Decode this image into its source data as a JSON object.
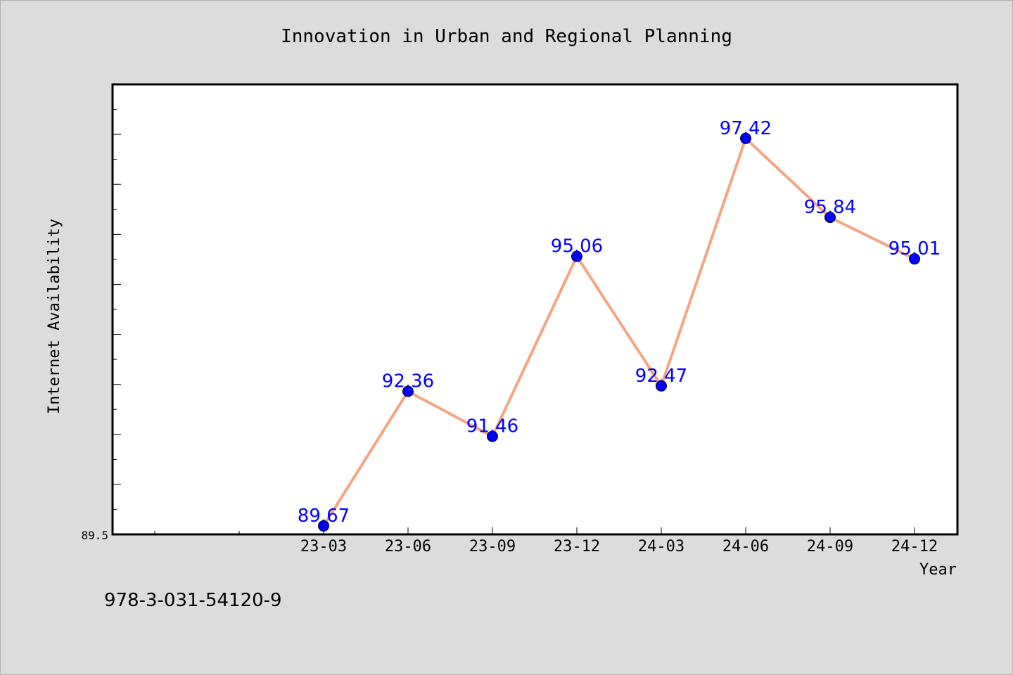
{
  "chart_data": {
    "type": "line",
    "title": "Innovation in Urban and Regional Planning",
    "xlabel": "Year",
    "ylabel": "Internet Availability",
    "categories": [
      "23-03",
      "23-06",
      "23-09",
      "23-12",
      "24-03",
      "24-06",
      "24-09",
      "24-12"
    ],
    "series": [
      {
        "values": [
          89.67,
          92.36,
          91.46,
          95.06,
          92.47,
          97.42,
          95.84,
          95.01
        ],
        "line_color": "#f4a582",
        "marker_color": "#0000ff"
      }
    ],
    "data_labels": [
      "89.67",
      "92.36",
      "91.46",
      "95.06",
      "92.47",
      "97.42",
      "95.84",
      "95.01"
    ],
    "ylim": [
      89.5,
      98.5
    ],
    "ytick_labels": [
      "89.5"
    ],
    "grid": false,
    "legend": "none",
    "label_color": "#0000ff"
  },
  "footer": {
    "isbn": "978-3-031-54120-9"
  }
}
